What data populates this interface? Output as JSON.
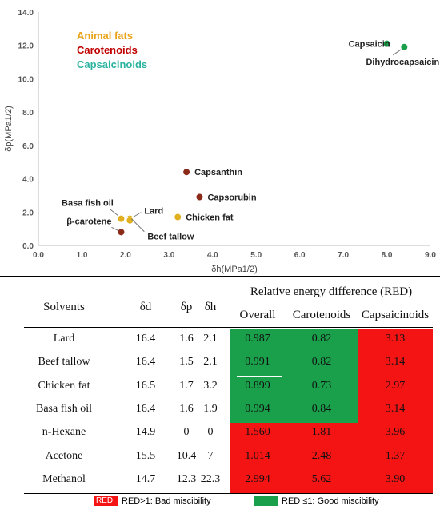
{
  "chart_data": {
    "type": "scatter",
    "title": "",
    "xlabel": "δh(MPa1/2)",
    "ylabel": "δp(MPa1/2)",
    "xlim": [
      0,
      9
    ],
    "ylim": [
      0,
      14
    ],
    "x_ticks": [
      "0.0",
      "1.0",
      "2.0",
      "3.0",
      "4.0",
      "5.0",
      "6.0",
      "7.0",
      "8.0",
      "9.0"
    ],
    "y_ticks": [
      "0.0",
      "2.0",
      "4.0",
      "6.0",
      "8.0",
      "10.0",
      "12.0",
      "14.0"
    ],
    "grid": false,
    "legend": [
      {
        "name": "Animal fats",
        "color": "#e8a317"
      },
      {
        "name": "Carotenoids",
        "color": "#c00000"
      },
      {
        "name": "Capsaicinoids",
        "color": "#2bb3a0"
      }
    ],
    "series": [
      {
        "name": "Animal fats",
        "color": "#e0b020",
        "points": [
          {
            "label": "Basa fish oil",
            "x": 1.9,
            "y": 1.6
          },
          {
            "label": "Lard",
            "x": 2.1,
            "y": 1.6
          },
          {
            "label": "Chicken fat",
            "x": 3.2,
            "y": 1.7
          },
          {
            "label": "Beef tallow",
            "x": 2.1,
            "y": 1.5
          }
        ]
      },
      {
        "name": "Carotenoids",
        "color": "#8b2a18",
        "points": [
          {
            "label": "β-carotene",
            "x": 1.9,
            "y": 0.8
          },
          {
            "label": "Capsanthin",
            "x": 3.4,
            "y": 4.4
          },
          {
            "label": "Capsorubin",
            "x": 3.7,
            "y": 2.9
          }
        ]
      },
      {
        "name": "Capsaicinoids",
        "color": "#1aa04a",
        "points": [
          {
            "label": "Capsaicin",
            "x": 8.0,
            "y": 12.1
          },
          {
            "label": "Dihydrocapsaicin",
            "x": 8.4,
            "y": 11.9
          }
        ]
      }
    ]
  },
  "table": {
    "col_solvents": "Solvents",
    "col_dd": "δd",
    "col_dp": "δp",
    "col_dh": "δh",
    "red_title": "Relative energy difference (RED)",
    "red_cols": [
      "Overall",
      "Carotenoids",
      "Capsaicinoids"
    ],
    "rows": [
      {
        "solvent": "Lard",
        "dd": "16.4",
        "dp": "1.6",
        "dh": "2.1",
        "overall": "0.987",
        "carotenoids": "0.82",
        "capsaicinoids": "3.13"
      },
      {
        "solvent": "Beef tallow",
        "dd": "16.4",
        "dp": "1.5",
        "dh": "2.1",
        "overall": "0.991",
        "carotenoids": "0.82",
        "capsaicinoids": "3.14"
      },
      {
        "solvent": "Chicken fat",
        "dd": "16.5",
        "dp": "1.7",
        "dh": "3.2",
        "overall": "0.899",
        "carotenoids": "0.73",
        "capsaicinoids": "2.97"
      },
      {
        "solvent": "Basa fish oil",
        "dd": "16.4",
        "dp": "1.6",
        "dh": "1.9",
        "overall": "0.994",
        "carotenoids": "0.84",
        "capsaicinoids": "3.14"
      },
      {
        "solvent": "n-Hexane",
        "dd": "14.9",
        "dp": "0",
        "dh": "0",
        "overall": "1.560",
        "carotenoids": "1.81",
        "capsaicinoids": "3.96"
      },
      {
        "solvent": "Acetone",
        "dd": "15.5",
        "dp": "10.4",
        "dh": "7",
        "overall": "1.014",
        "carotenoids": "2.48",
        "capsaicinoids": "1.37"
      },
      {
        "solvent": "Methanol",
        "dd": "14.7",
        "dp": "12.3",
        "dh": "22.3",
        "overall": "2.994",
        "carotenoids": "5.62",
        "capsaicinoids": "3.90"
      }
    ],
    "legend_bad": "RED>1: Bad miscibility",
    "legend_good": "RED ≤1: Good miscibility",
    "legend_bad_swatch": "RED",
    "colors": {
      "good": "#1aa04a",
      "bad": "#f51414"
    }
  }
}
